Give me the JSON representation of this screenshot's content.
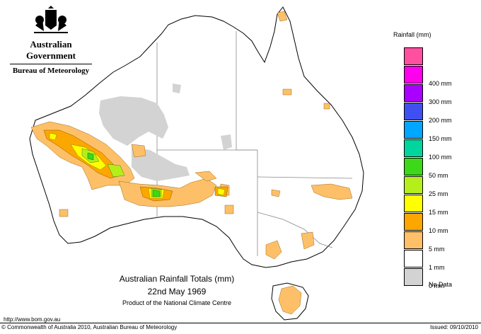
{
  "header": {
    "government": "Australian Government",
    "bureau": "Bureau of Meteorology"
  },
  "map": {
    "title": "Australian Rainfall Totals (mm)",
    "date": "22nd May 1969",
    "subtitle": "Product of the National Climate Centre",
    "colors": {
      "land": "#ffffff",
      "border": "#888888",
      "no_data": "#d3d3d3",
      "r1": "#fdc068",
      "r5": "#fca600",
      "r10": "#ffff00",
      "r15": "#b4ef1c",
      "r25": "#3cd819"
    }
  },
  "legend": {
    "title": "Rainfall (mm)",
    "items": [
      {
        "label": "",
        "color": "#ff50a0"
      },
      {
        "label": "400 mm",
        "color": "#ff00ee"
      },
      {
        "label": "300 mm",
        "color": "#aa00ff"
      },
      {
        "label": "200 mm",
        "color": "#4050f0"
      },
      {
        "label": "150 mm",
        "color": "#00a6ff"
      },
      {
        "label": "100 mm",
        "color": "#00d59e"
      },
      {
        "label": "50 mm",
        "color": "#3cd819"
      },
      {
        "label": "25 mm",
        "color": "#b4ef1c"
      },
      {
        "label": "15 mm",
        "color": "#ffff00"
      },
      {
        "label": "10 mm",
        "color": "#fca600"
      },
      {
        "label": "5 mm",
        "color": "#fdc068"
      },
      {
        "label": "1 mm",
        "color": "#ffffff"
      },
      {
        "label": "0 mm",
        "color": "#d3d3d3"
      },
      {
        "label": "No Data",
        "color": ""
      }
    ]
  },
  "footer": {
    "url": "http://www.bom.gov.au",
    "copyright": "© Commonwealth of Australia 2010, Australian Bureau of Meteorology",
    "issued": "Issued: 09/10/2010"
  }
}
